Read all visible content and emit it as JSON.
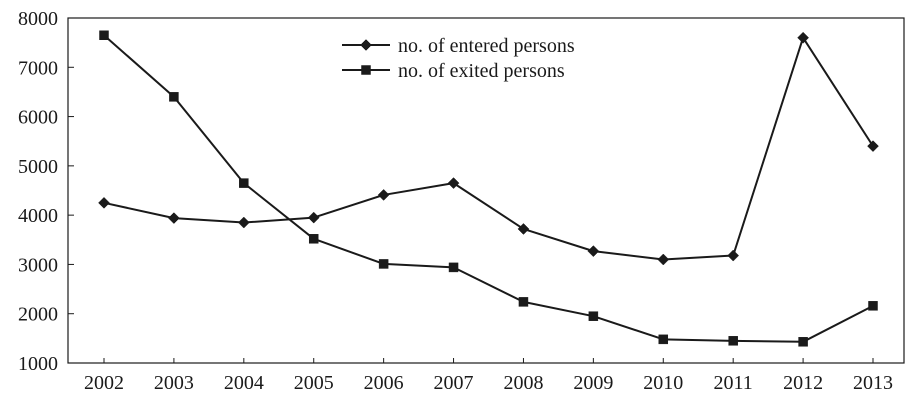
{
  "chart_data": {
    "type": "line",
    "title": "",
    "xlabel": "",
    "ylabel": "",
    "categories": [
      "2002",
      "2003",
      "2004",
      "2005",
      "2006",
      "2007",
      "2008",
      "2009",
      "2010",
      "2011",
      "2012",
      "2013"
    ],
    "ylim": [
      1000,
      8000
    ],
    "yticks": [
      1000,
      2000,
      3000,
      4000,
      5000,
      6000,
      7000,
      8000
    ],
    "grid": false,
    "legend_position": "top-center",
    "series": [
      {
        "name": "no. of entered persons",
        "marker": "diamond",
        "color": "#1a1a1a",
        "values": [
          4250,
          3940,
          3850,
          3950,
          4410,
          4650,
          3720,
          3270,
          3100,
          3180,
          7600,
          5400
        ]
      },
      {
        "name": "no. of exited persons",
        "marker": "square",
        "color": "#1a1a1a",
        "values": [
          7650,
          6400,
          4650,
          3520,
          3010,
          2940,
          2240,
          1950,
          1480,
          1450,
          1430,
          2160
        ]
      }
    ]
  }
}
